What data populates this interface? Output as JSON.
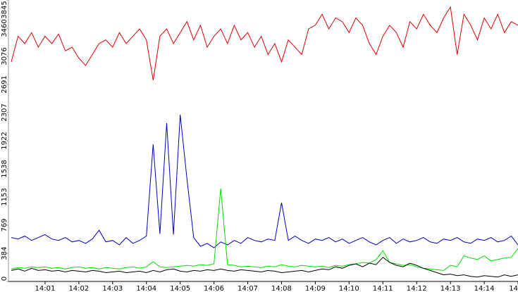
{
  "chart_data": {
    "type": "line",
    "x": [
      0,
      0.2,
      0.4,
      0.6,
      0.8,
      1,
      1.2,
      1.4,
      1.6,
      1.8,
      2,
      2.2,
      2.4,
      2.6,
      2.8,
      3,
      3.2,
      3.4,
      3.6,
      3.8,
      4,
      4.2,
      4.4,
      4.6,
      4.8,
      5,
      5.2,
      5.4,
      5.6,
      5.8,
      6,
      6.2,
      6.4,
      6.6,
      6.8,
      7,
      7.2,
      7.4,
      7.6,
      7.8,
      8,
      8.2,
      8.4,
      8.6,
      8.8,
      9,
      9.2,
      9.4,
      9.6,
      9.8,
      10,
      10.2,
      10.4,
      10.6,
      10.8,
      11,
      11.2,
      11.4,
      11.6,
      11.8,
      12,
      12.2,
      12.4,
      12.6,
      12.8,
      13,
      13.2,
      13.4,
      13.6,
      13.8,
      14,
      14.2,
      14.4,
      14.6,
      14.8,
      15
    ],
    "series": [
      {
        "color": "#e00000",
        "values": [
          3000,
          3350,
          3250,
          3400,
          3200,
          3350,
          3250,
          3380,
          3150,
          3200,
          3050,
          2950,
          3100,
          3250,
          3300,
          3200,
          3400,
          3250,
          3350,
          3450,
          3300,
          2750,
          3350,
          3450,
          3250,
          3400,
          3550,
          3300,
          3500,
          3200,
          3350,
          3450,
          3250,
          3500,
          3300,
          3400,
          3200,
          3350,
          3100,
          3250,
          3000,
          3300,
          3200,
          3100,
          3450,
          3500,
          3650,
          3450,
          3600,
          3550,
          3400,
          3600,
          3500,
          3250,
          3100,
          3350,
          3500,
          3400,
          3200,
          3550,
          3450,
          3650,
          3500,
          3400,
          3600,
          3750,
          3100,
          3650,
          3500,
          3300,
          3600,
          3450,
          3650,
          3400,
          3550,
          3500
        ]
      },
      {
        "color": "#0000c0",
        "values": [
          600,
          580,
          620,
          560,
          600,
          640,
          580,
          560,
          600,
          540,
          560,
          520,
          580,
          700,
          540,
          560,
          500,
          600,
          520,
          560,
          620,
          1874,
          650,
          2163,
          640,
          2278,
          1400,
          600,
          480,
          520,
          460,
          540,
          500,
          560,
          520,
          600,
          560,
          540,
          580,
          560,
          1077,
          560,
          620,
          560,
          520,
          580,
          560,
          600,
          540,
          580,
          520,
          560,
          600,
          540,
          500,
          560,
          600,
          520,
          580,
          540,
          560,
          600,
          540,
          520,
          580,
          560,
          600,
          540,
          520,
          580,
          560,
          600,
          540,
          560,
          620,
          500
        ]
      },
      {
        "color": "#00e000",
        "values": [
          170,
          190,
          180,
          200,
          190,
          200,
          180,
          190,
          170,
          190,
          200,
          180,
          190,
          170,
          190,
          180,
          170,
          190,
          200,
          180,
          200,
          270,
          200,
          190,
          200,
          210,
          220,
          210,
          230,
          220,
          240,
          1270,
          230,
          220,
          200,
          210,
          200,
          190,
          210,
          200,
          230,
          210,
          200,
          220,
          210,
          200,
          210,
          190,
          220,
          210,
          230,
          240,
          260,
          250,
          300,
          420,
          260,
          240,
          220,
          230,
          200,
          180,
          170,
          160,
          150,
          220,
          200,
          350,
          320,
          300,
          350,
          280,
          300,
          320,
          330,
          450
        ]
      },
      {
        "color": "#000000",
        "values": [
          150,
          170,
          140,
          180,
          150,
          160,
          140,
          150,
          130,
          150,
          140,
          130,
          150,
          140,
          120,
          130,
          140,
          120,
          130,
          140,
          120,
          150,
          130,
          160,
          170,
          140,
          130,
          150,
          140,
          160,
          150,
          170,
          150,
          140,
          160,
          150,
          140,
          130,
          150,
          140,
          120,
          130,
          140,
          150,
          130,
          150,
          170,
          160,
          200,
          180,
          220,
          240,
          200,
          250,
          230,
          330,
          260,
          220,
          200,
          250,
          220,
          180,
          150,
          120,
          90,
          100,
          80,
          90,
          70,
          60,
          80,
          70,
          60,
          90,
          70,
          90
        ]
      }
    ],
    "xlim": [
      0,
      15
    ],
    "xticks": [
      {
        "value": 1,
        "label": "14:01"
      },
      {
        "value": 2,
        "label": "14:02"
      },
      {
        "value": 3,
        "label": "14:03"
      },
      {
        "value": 4,
        "label": "14:04"
      },
      {
        "value": 5,
        "label": "14:05"
      },
      {
        "value": 6,
        "label": "14:06"
      },
      {
        "value": 7,
        "label": "14:07"
      },
      {
        "value": 8,
        "label": "14:08"
      },
      {
        "value": 9,
        "label": "14:09"
      },
      {
        "value": 10,
        "label": "14:10"
      },
      {
        "value": 11,
        "label": "14:11"
      },
      {
        "value": 12,
        "label": "14:12"
      },
      {
        "value": 13,
        "label": "14:13"
      },
      {
        "value": 14,
        "label": "14:14"
      },
      {
        "value": 15,
        "label": "14"
      }
    ],
    "ylim": [
      0,
      3845
    ],
    "yticks": [
      0,
      384,
      769,
      1153,
      1538,
      1922,
      2307,
      2691,
      3076,
      3460,
      3845
    ]
  }
}
